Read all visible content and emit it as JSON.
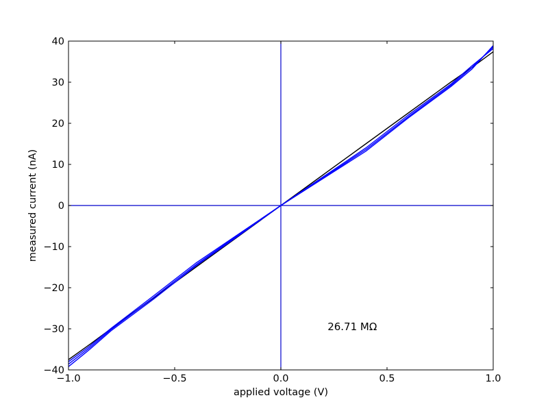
{
  "chart_data": {
    "type": "line",
    "xlabel": "applied voltage (V)",
    "ylabel": "measured current (nA)",
    "xlim": [
      -1.0,
      1.0
    ],
    "ylim": [
      -40,
      40
    ],
    "x_ticks": [
      -1.0,
      -0.5,
      0.0,
      0.5,
      1.0
    ],
    "x_tick_labels": [
      "−1.0",
      "−0.5",
      "0.0",
      "0.5",
      "1.0"
    ],
    "y_ticks": [
      -40,
      -30,
      -20,
      -10,
      0,
      10,
      20,
      30,
      40
    ],
    "y_tick_labels": [
      "−40",
      "−30",
      "−20",
      "−10",
      "0",
      "10",
      "20",
      "30",
      "40"
    ],
    "grid": false,
    "reference_lines": {
      "x": 0,
      "y": 0,
      "color": "#0000cc"
    },
    "annotation": {
      "text": "26.71 MΩ",
      "x": 0.22,
      "y": -29.5
    },
    "series": [
      {
        "color": "#000000",
        "x": [
          -1.0,
          -0.9,
          -0.8,
          -0.6,
          -0.4,
          -0.2,
          0.0,
          0.2,
          0.4,
          0.6,
          0.8,
          0.9,
          1.0
        ],
        "y": [
          -37.5,
          -33.8,
          -30.0,
          -22.5,
          -15.0,
          -7.5,
          0.0,
          7.5,
          15.0,
          22.5,
          30.0,
          33.6,
          37.4
        ]
      },
      {
        "color": "#0000ff",
        "x": [
          -1.0,
          -0.9,
          -0.8,
          -0.6,
          -0.4,
          -0.2,
          0.0,
          0.2,
          0.4,
          0.6,
          0.8,
          0.9,
          1.0
        ],
        "y": [
          -38.0,
          -34.2,
          -29.9,
          -22.0,
          -14.0,
          -7.0,
          0.0,
          7.0,
          14.0,
          22.0,
          29.5,
          34.0,
          38.2
        ]
      },
      {
        "color": "#0000ff",
        "x": [
          -1.0,
          -0.9,
          -0.8,
          -0.6,
          -0.4,
          -0.2,
          0.0,
          0.2,
          0.4,
          0.6,
          0.8,
          0.9,
          1.0
        ],
        "y": [
          -38.6,
          -34.6,
          -30.2,
          -22.4,
          -14.4,
          -7.2,
          0.0,
          6.8,
          13.6,
          21.6,
          29.2,
          33.6,
          38.6
        ]
      },
      {
        "color": "#0000ff",
        "x": [
          -1.0,
          -0.9,
          -0.8,
          -0.6,
          -0.4,
          -0.2,
          0.0,
          0.2,
          0.4,
          0.6,
          0.8,
          0.9,
          1.0
        ],
        "y": [
          -39.2,
          -35.0,
          -30.5,
          -22.8,
          -14.7,
          -7.4,
          0.0,
          6.6,
          13.2,
          21.3,
          28.9,
          33.2,
          38.9
        ]
      }
    ]
  }
}
